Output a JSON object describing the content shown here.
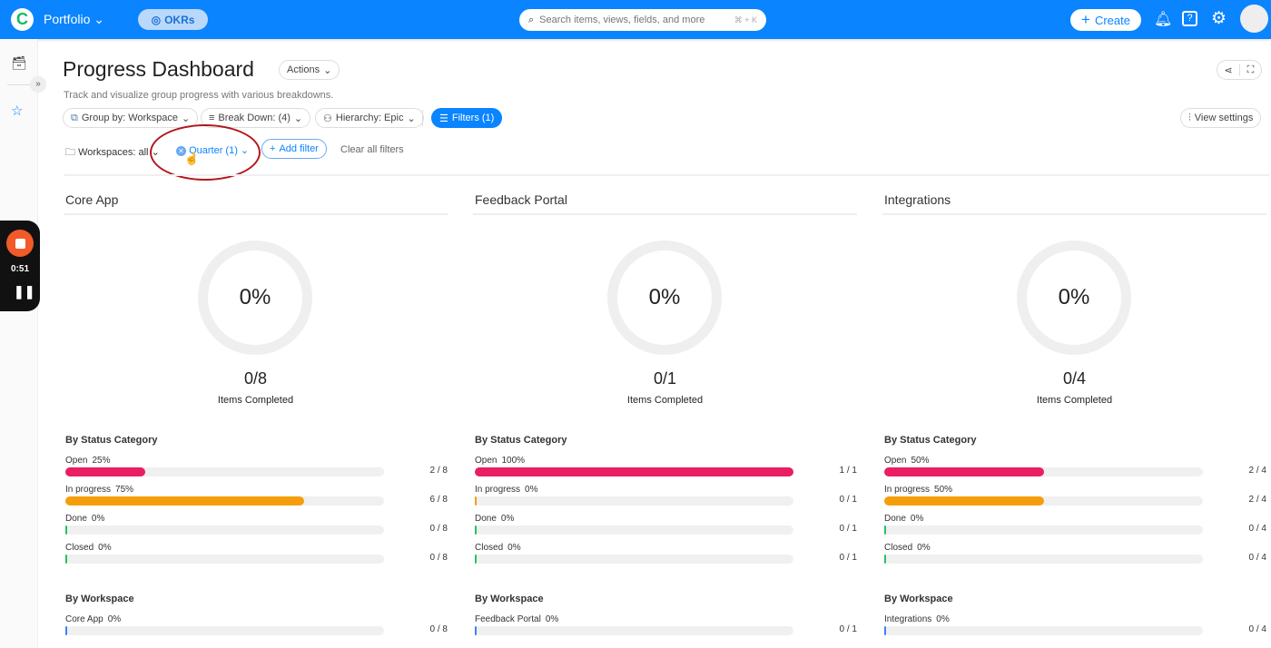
{
  "topbar": {
    "app": "Portfolio",
    "okrs": "OKRs",
    "search_placeholder": "Search items, views, fields, and more",
    "search_shortcut": "⌘ + K",
    "create": "Create"
  },
  "recorder": {
    "time": "0:51"
  },
  "page": {
    "title": "Progress Dashboard",
    "actions": "Actions",
    "subtitle": "Track and visualize group progress with various breakdowns.",
    "group_by": "Group by: Workspace",
    "break_down": "Break Down: (4)",
    "hierarchy": "Hierarchy: Epic",
    "filters": "Filters (1)",
    "view_settings": "View settings",
    "workspaces": "Workspaces: all",
    "quarter": "Quarter (1)",
    "add_filter": "Add filter",
    "clear_filters": "Clear all filters"
  },
  "colors": {
    "accent": "#0a84ff",
    "open": "#e91e63",
    "in_progress": "#f59e0b",
    "done": "#22c55e",
    "closed": "#22c55e",
    "workspace": "#3b82f6"
  },
  "columns": [
    {
      "title": "Core App",
      "percent": "0%",
      "ratio": "0/8",
      "items_label": "Items Completed",
      "status_heading": "By Status Category",
      "statuses": [
        {
          "label": "Open",
          "pct": "25%",
          "value": 25,
          "count": "2 / 8",
          "color": "#e91e63"
        },
        {
          "label": "In progress",
          "pct": "75%",
          "value": 75,
          "count": "6 / 8",
          "color": "#f59e0b"
        },
        {
          "label": "Done",
          "pct": "0%",
          "value": 0,
          "count": "0 / 8",
          "color": "#22c55e"
        },
        {
          "label": "Closed",
          "pct": "0%",
          "value": 0,
          "count": "0 / 8",
          "color": "#22c55e"
        }
      ],
      "workspace_heading": "By Workspace",
      "workspace": {
        "label": "Core App",
        "pct": "0%",
        "value": 0,
        "count": "0 / 8",
        "color": "#3b82f6"
      }
    },
    {
      "title": "Feedback Portal",
      "percent": "0%",
      "ratio": "0/1",
      "items_label": "Items Completed",
      "status_heading": "By Status Category",
      "statuses": [
        {
          "label": "Open",
          "pct": "100%",
          "value": 100,
          "count": "1 / 1",
          "color": "#e91e63"
        },
        {
          "label": "In progress",
          "pct": "0%",
          "value": 0,
          "count": "0 / 1",
          "color": "#f59e0b"
        },
        {
          "label": "Done",
          "pct": "0%",
          "value": 0,
          "count": "0 / 1",
          "color": "#22c55e"
        },
        {
          "label": "Closed",
          "pct": "0%",
          "value": 0,
          "count": "0 / 1",
          "color": "#22c55e"
        }
      ],
      "workspace_heading": "By Workspace",
      "workspace": {
        "label": "Feedback Portal",
        "pct": "0%",
        "value": 0,
        "count": "0 / 1",
        "color": "#3b82f6"
      }
    },
    {
      "title": "Integrations",
      "percent": "0%",
      "ratio": "0/4",
      "items_label": "Items Completed",
      "status_heading": "By Status Category",
      "statuses": [
        {
          "label": "Open",
          "pct": "50%",
          "value": 50,
          "count": "2 / 4",
          "color": "#e91e63"
        },
        {
          "label": "In progress",
          "pct": "50%",
          "value": 50,
          "count": "2 / 4",
          "color": "#f59e0b"
        },
        {
          "label": "Done",
          "pct": "0%",
          "value": 0,
          "count": "0 / 4",
          "color": "#22c55e"
        },
        {
          "label": "Closed",
          "pct": "0%",
          "value": 0,
          "count": "0 / 4",
          "color": "#22c55e"
        }
      ],
      "workspace_heading": "By Workspace",
      "workspace": {
        "label": "Integrations",
        "pct": "0%",
        "value": 0,
        "count": "0 / 4",
        "color": "#3b82f6"
      }
    }
  ]
}
